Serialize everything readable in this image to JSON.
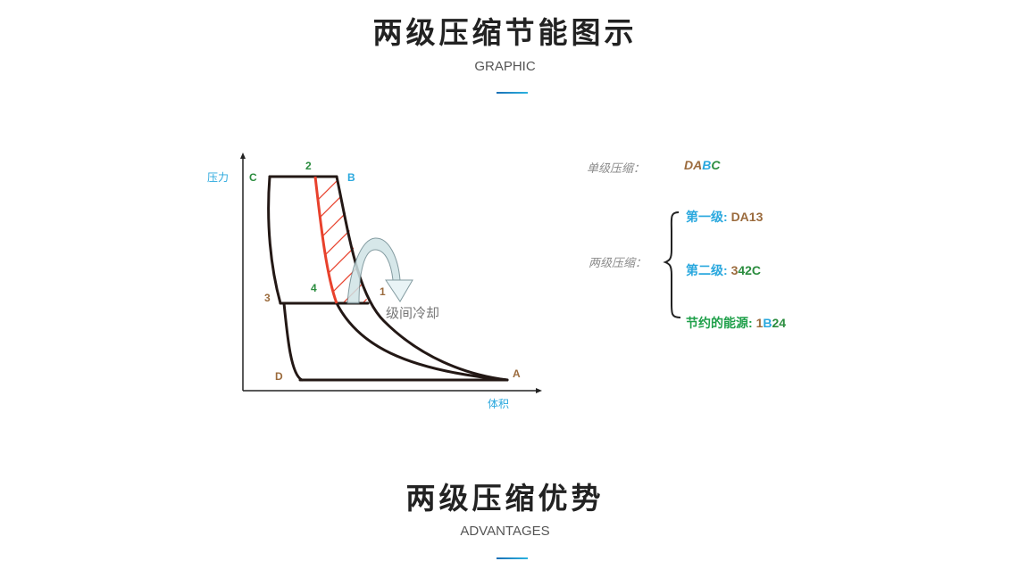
{
  "section1": {
    "title": "两级压缩节能图示",
    "subtitle": "GRAPHIC"
  },
  "section2": {
    "title": "两级压缩优势",
    "subtitle": "ADVANTAGES"
  },
  "diagram": {
    "y_axis_label": "压力",
    "x_axis_label": "体积",
    "points": {
      "A": "A",
      "B": "B",
      "C": "C",
      "D": "D",
      "p1": "1",
      "p2": "2",
      "p3": "3",
      "p4": "4"
    },
    "arrow_label": "级间冷却"
  },
  "legend": {
    "single_label": "单级压缩：",
    "single_value": [
      "DA",
      "B",
      "C"
    ],
    "double_label": "两级压缩：",
    "stage1_label": "第一级: ",
    "stage1_value": "DA13",
    "stage2_label": "第二级: ",
    "stage2_value": [
      "3",
      "42C"
    ],
    "saving_label": "节约的能源: ",
    "saving_value": [
      "1",
      "B",
      "24"
    ]
  },
  "colors": {
    "brown": "#9b6b3d",
    "blue": "#2aa8de",
    "green": "#2a8c3e",
    "red": "#e8412c",
    "accent": "#1d8fd0"
  }
}
